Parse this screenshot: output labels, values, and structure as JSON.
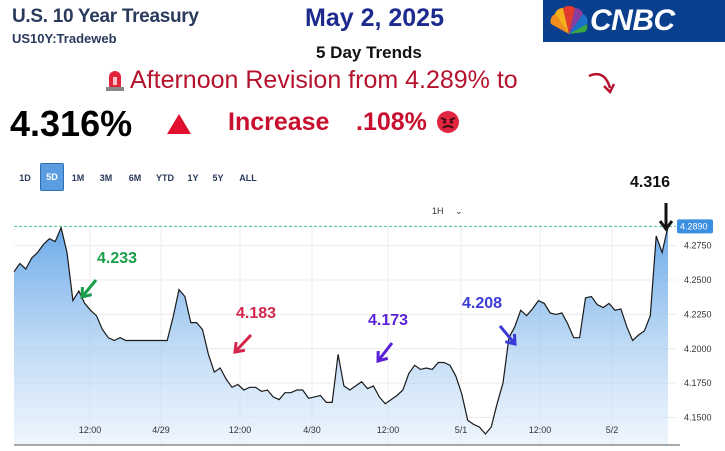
{
  "header": {
    "title": "U.S. 10 Year Treasury",
    "subtitle": "US10Y:Tradeweb",
    "date": "May 2, 2025",
    "trends": "5 Day Trends",
    "logo_text": "CNBC"
  },
  "headline": {
    "revision": "Afternoon Revision from 4.289% to",
    "price": "4.316%",
    "increase_label": "Increase",
    "increase_value": ".108%"
  },
  "range_tabs": [
    "1D",
    "5D",
    "1M",
    "3M",
    "6M",
    "YTD",
    "1Y",
    "5Y",
    "ALL"
  ],
  "selected_range": "5D",
  "interval": "1H",
  "colors": {
    "title": "#2a3a5c",
    "date": "#1d2b8f",
    "revision": "#b5122e",
    "increase": "#c8102e",
    "cnbc_bg": "#0a3f8e",
    "line": "#1a1a1a",
    "fill": "#5aa0e6",
    "reference_line": "#44c28f",
    "price_tag": "#3a8fe0"
  },
  "chart_data": {
    "type": "area",
    "x_ticks": [
      "12:00",
      "4/29",
      "12:00",
      "4/30",
      "12:00",
      "5/1",
      "12:00",
      "5/2"
    ],
    "y_ticks": [
      "4.2750",
      "4.2500",
      "4.2250",
      "4.2000",
      "4.1750",
      "4.1500"
    ],
    "ylim": [
      4.13,
      4.29
    ],
    "reference_value": 4.289,
    "reference_label": "4.2890",
    "annotations": [
      {
        "text": "4.233",
        "value": 4.233,
        "color": "#1a9e4a"
      },
      {
        "text": "4.183",
        "value": 4.183,
        "color": "#d4264d"
      },
      {
        "text": "4.173",
        "value": 4.173,
        "color": "#5a1fd6"
      },
      {
        "text": "4.208",
        "value": 4.208,
        "color": "#3a3ad8"
      },
      {
        "text": "4.316",
        "value": 4.316,
        "color": "#111111"
      }
    ],
    "values": [
      4.256,
      4.262,
      4.258,
      4.266,
      4.27,
      4.276,
      4.28,
      4.278,
      4.288,
      4.27,
      4.235,
      4.242,
      4.233,
      4.228,
      4.224,
      4.214,
      4.208,
      4.206,
      4.208,
      4.206,
      4.206,
      4.206,
      4.206,
      4.206,
      4.206,
      4.206,
      4.206,
      4.223,
      4.243,
      4.238,
      4.219,
      4.219,
      4.214,
      4.196,
      4.183,
      4.186,
      4.178,
      4.172,
      4.174,
      4.17,
      4.172,
      4.172,
      4.169,
      4.17,
      4.165,
      4.163,
      4.168,
      4.168,
      4.17,
      4.17,
      4.164,
      4.165,
      4.166,
      4.161,
      4.161,
      4.196,
      4.173,
      4.17,
      4.173,
      4.176,
      4.171,
      4.173,
      4.165,
      4.16,
      4.163,
      4.166,
      4.17,
      4.182,
      4.188,
      4.185,
      4.186,
      4.185,
      4.19,
      4.19,
      4.188,
      4.18,
      4.167,
      4.148,
      4.145,
      4.143,
      4.138,
      4.143,
      4.16,
      4.175,
      4.208,
      4.216,
      4.228,
      4.224,
      4.229,
      4.235,
      4.233,
      4.226,
      4.225,
      4.226,
      4.218,
      4.208,
      4.208,
      4.237,
      4.238,
      4.232,
      4.23,
      4.233,
      4.228,
      4.229,
      4.216,
      4.206,
      4.21,
      4.213,
      4.224,
      4.282,
      4.27,
      4.289
    ]
  }
}
